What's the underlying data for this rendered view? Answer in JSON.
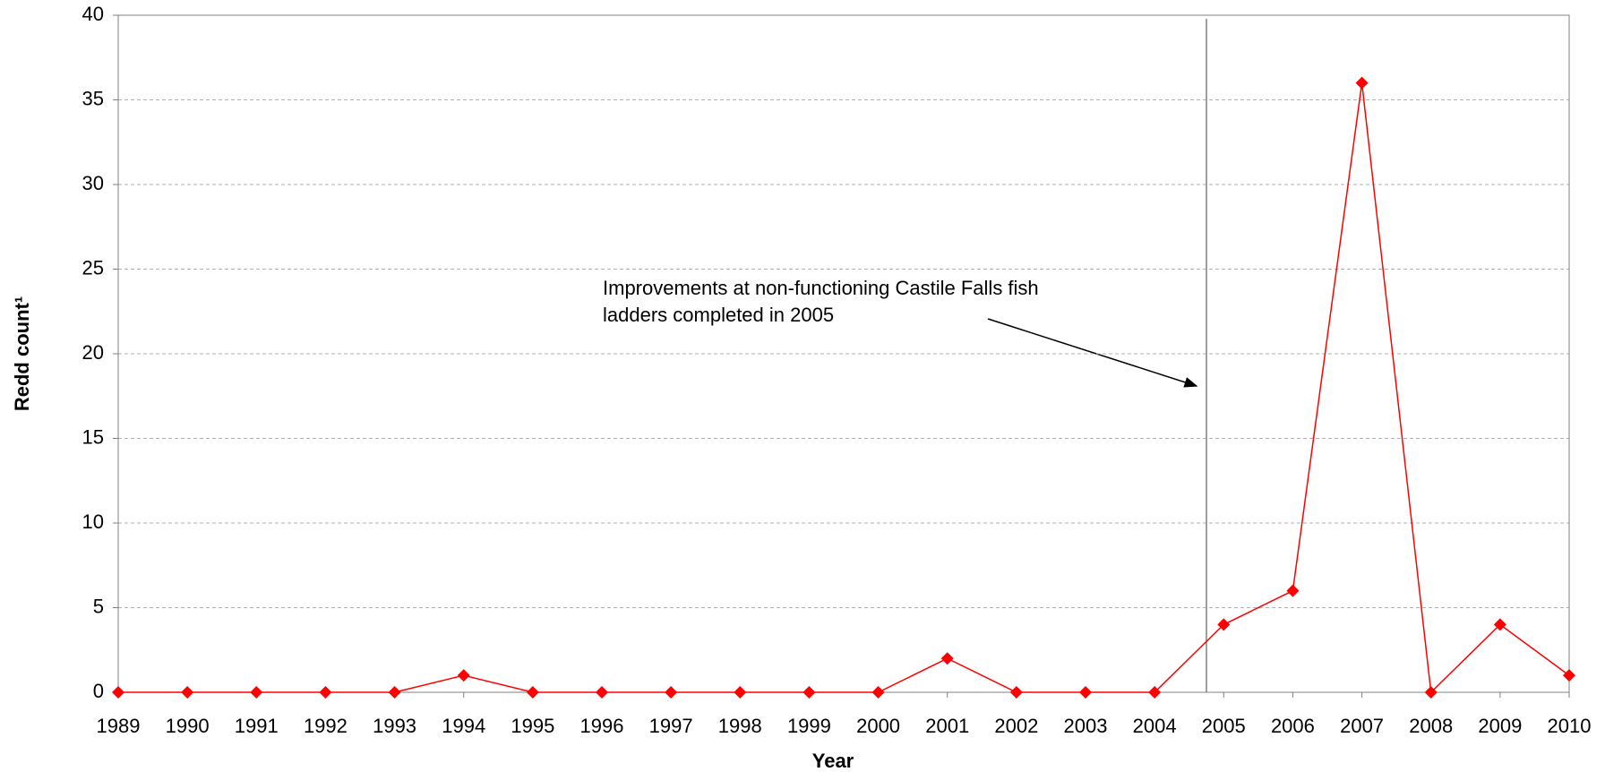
{
  "chart_data": {
    "type": "line",
    "x_label": "Year",
    "y_label": "Redd count¹",
    "annotation": [
      "Improvements at non-functioning Castile Falls fish",
      "ladders completed in 2005"
    ],
    "x": [
      1989,
      1990,
      1991,
      1992,
      1993,
      1994,
      1995,
      1996,
      1997,
      1998,
      1999,
      2000,
      2001,
      2002,
      2003,
      2004,
      2005,
      2006,
      2007,
      2008,
      2009,
      2010
    ],
    "series": [
      {
        "color": "#ff0000",
        "values": [
          0,
          0,
          0,
          0,
          0,
          1,
          0,
          0,
          0,
          0,
          0,
          0,
          2,
          0,
          0,
          0,
          4,
          6,
          36,
          0,
          4,
          1
        ]
      }
    ],
    "xlim": [
      1989,
      2010
    ],
    "xticks": [
      1989,
      1990,
      1991,
      1992,
      1993,
      1994,
      1995,
      1996,
      1997,
      1998,
      1999,
      2000,
      2001,
      2002,
      2003,
      2004,
      2005,
      2006,
      2007,
      2008,
      2009,
      2010
    ],
    "ylim": [
      0,
      40
    ],
    "yticks": [
      0,
      5,
      10,
      15,
      20,
      25,
      30,
      35,
      40
    ],
    "grid": true,
    "reference_line_x": 2004.75
  }
}
